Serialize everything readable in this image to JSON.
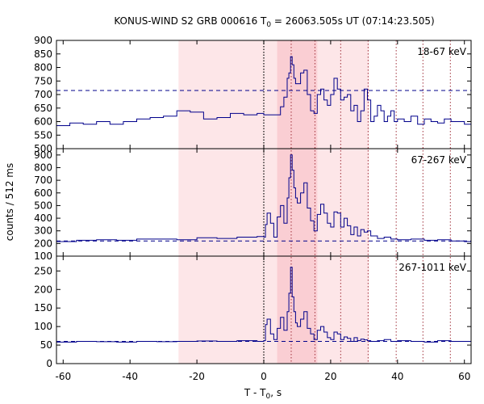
{
  "chart_data": {
    "type": "line",
    "title_prefix": "KONUS-WIND S2 GRB 000616 T",
    "title_subscript": "0",
    "title_suffix": " = 26063.505s UT (07:14:23.505)",
    "xlabel_prefix": "T - T",
    "xlabel_subscript": "0",
    "xlabel_suffix": ", s",
    "ylabel": "counts / 512 ms",
    "xlim": [
      -62,
      62
    ],
    "xticks": [
      -60,
      -40,
      -20,
      0,
      20,
      40,
      60
    ],
    "shaded_regions": [
      {
        "x0": -25.5,
        "x1": 31.5,
        "level": "light"
      },
      {
        "x0": 4,
        "x1": 16,
        "level": "dark"
      }
    ],
    "vertical_dotted_lines": [
      0,
      8.2,
      15.3,
      23,
      31.2,
      39.6,
      47.6,
      55.8
    ],
    "t0_line": 0,
    "color": "#00008b",
    "panels": [
      {
        "label": "18-67 keV",
        "ylim": [
          500,
          900
        ],
        "yticks": [
          500,
          550,
          600,
          650,
          700,
          750,
          800,
          850,
          900
        ],
        "background": 715,
        "x": [
          -62,
          -58,
          -54,
          -50,
          -46,
          -42,
          -38,
          -34,
          -30,
          -26,
          -22,
          -18,
          -14,
          -10,
          -6,
          -2,
          0,
          5,
          6,
          7,
          7.5,
          8,
          8.5,
          9,
          9.5,
          10,
          11,
          12,
          13,
          14,
          15,
          16,
          17,
          18,
          19,
          20,
          21,
          22,
          23,
          24,
          25,
          26,
          27,
          28,
          29,
          30,
          31,
          32,
          33,
          34,
          35,
          36,
          37,
          38,
          39,
          40,
          42,
          44,
          46,
          48,
          50,
          52,
          54,
          56,
          58,
          60,
          62
        ],
        "y": [
          585,
          595,
          590,
          600,
          590,
          600,
          610,
          615,
          620,
          640,
          635,
          610,
          615,
          630,
          625,
          630,
          625,
          655,
          690,
          760,
          780,
          840,
          810,
          760,
          740,
          740,
          780,
          790,
          700,
          640,
          630,
          700,
          720,
          680,
          660,
          700,
          760,
          720,
          680,
          690,
          700,
          640,
          660,
          600,
          640,
          720,
          680,
          600,
          620,
          660,
          640,
          600,
          620,
          640,
          600,
          610,
          600,
          620,
          590,
          610,
          600,
          595,
          610,
          600,
          600,
          590,
          595
        ]
      },
      {
        "label": "67-267 keV",
        "ylim": [
          100,
          950
        ],
        "yticks": [
          100,
          200,
          300,
          400,
          500,
          600,
          700,
          800,
          900
        ],
        "background": 220,
        "x": [
          -62,
          -56,
          -50,
          -44,
          -38,
          -32,
          -26,
          -20,
          -14,
          -8,
          -2,
          0,
          0.5,
          1,
          2,
          3,
          4,
          5,
          6,
          7,
          7.5,
          8,
          8.5,
          9,
          9.5,
          10,
          11,
          12,
          13,
          14,
          15,
          16,
          17,
          18,
          19,
          20,
          21,
          22,
          23,
          24,
          25,
          26,
          27,
          28,
          29,
          30,
          31,
          32,
          34,
          36,
          38,
          40,
          44,
          48,
          52,
          56,
          60,
          62
        ],
        "y": [
          215,
          225,
          230,
          225,
          235,
          235,
          230,
          245,
          240,
          250,
          255,
          250,
          350,
          440,
          360,
          250,
          410,
          500,
          360,
          560,
          720,
          900,
          780,
          640,
          560,
          520,
          600,
          680,
          480,
          380,
          300,
          430,
          510,
          440,
          360,
          330,
          450,
          440,
          330,
          400,
          340,
          270,
          330,
          260,
          310,
          290,
          300,
          260,
          240,
          250,
          235,
          230,
          235,
          225,
          230,
          220,
          215,
          215
        ]
      },
      {
        "label": "267-1011 keV",
        "ylim": [
          0,
          290
        ],
        "yticks": [
          0,
          50,
          100,
          150,
          200,
          250
        ],
        "background": 60,
        "x": [
          -62,
          -56,
          -50,
          -44,
          -38,
          -32,
          -26,
          -20,
          -14,
          -8,
          -2,
          0,
          0.5,
          1,
          2,
          3,
          4,
          5,
          6,
          7,
          7.5,
          8,
          8.5,
          9,
          9.5,
          10,
          11,
          12,
          13,
          14,
          15,
          16,
          17,
          18,
          19,
          20,
          21,
          22,
          23,
          24,
          25,
          26,
          27,
          28,
          29,
          30,
          31,
          32,
          34,
          36,
          38,
          40,
          44,
          48,
          52,
          56,
          60,
          62
        ],
        "y": [
          58,
          60,
          59,
          58,
          60,
          59,
          60,
          61,
          60,
          62,
          60,
          62,
          105,
          120,
          80,
          65,
          95,
          125,
          90,
          140,
          190,
          260,
          180,
          140,
          110,
          100,
          120,
          140,
          95,
          80,
          65,
          90,
          100,
          85,
          70,
          65,
          85,
          80,
          65,
          72,
          68,
          60,
          70,
          62,
          66,
          64,
          62,
          60,
          62,
          65,
          60,
          62,
          60,
          58,
          62,
          60,
          60,
          58
        ]
      }
    ]
  }
}
